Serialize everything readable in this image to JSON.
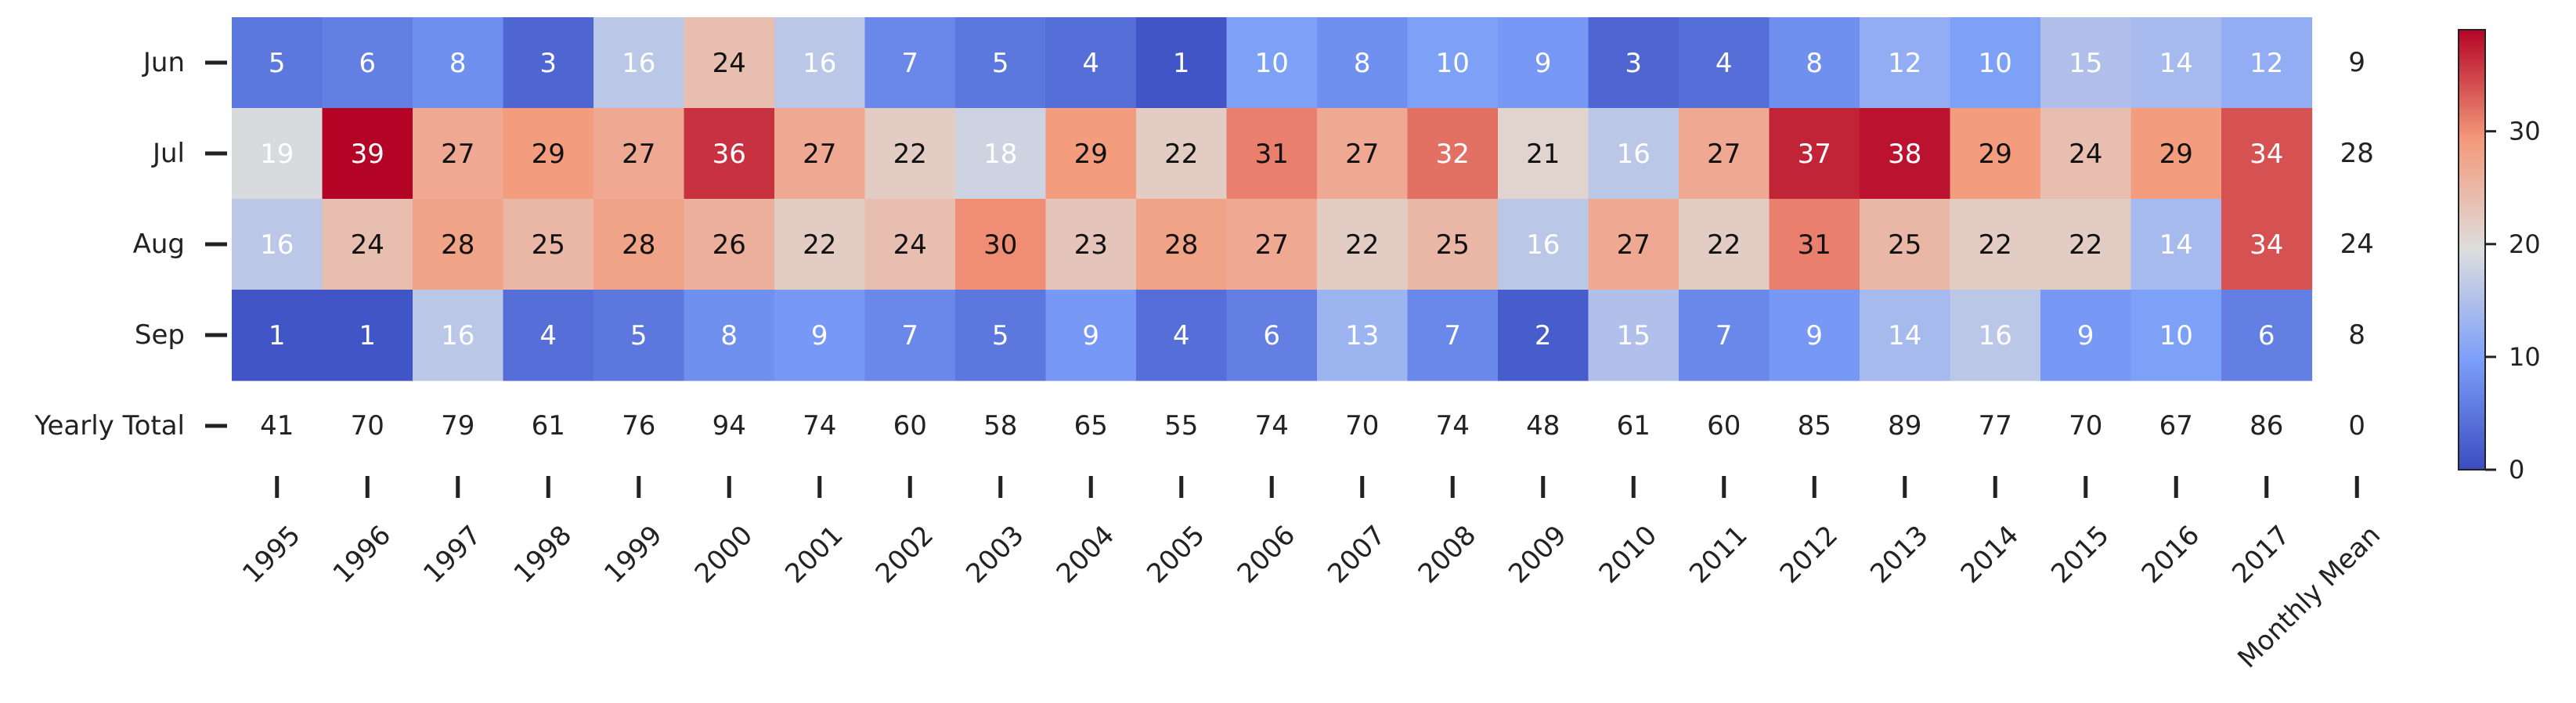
{
  "chart_data": {
    "type": "heatmap",
    "colormap": "coolwarm",
    "vmin": 0,
    "vmax": 39,
    "colorbar_ticks": [
      0,
      10,
      20,
      30
    ],
    "rows": [
      "Jun",
      "Jul",
      "Aug",
      "Sep"
    ],
    "columns": [
      "1995",
      "1996",
      "1997",
      "1998",
      "1999",
      "2000",
      "2001",
      "2002",
      "2003",
      "2004",
      "2005",
      "2006",
      "2007",
      "2008",
      "2009",
      "2010",
      "2011",
      "2012",
      "2013",
      "2014",
      "2015",
      "2016",
      "2017"
    ],
    "values": [
      [
        5,
        6,
        8,
        3,
        16,
        24,
        16,
        7,
        5,
        4,
        1,
        10,
        8,
        10,
        9,
        3,
        4,
        8,
        12,
        10,
        15,
        14,
        12
      ],
      [
        19,
        39,
        27,
        29,
        27,
        36,
        27,
        22,
        18,
        29,
        22,
        31,
        27,
        32,
        21,
        16,
        27,
        37,
        38,
        29,
        24,
        29,
        34
      ],
      [
        16,
        24,
        28,
        25,
        28,
        26,
        22,
        24,
        30,
        23,
        28,
        27,
        22,
        25,
        16,
        27,
        22,
        31,
        25,
        22,
        22,
        14,
        34
      ],
      [
        1,
        1,
        16,
        4,
        5,
        8,
        9,
        7,
        5,
        9,
        4,
        6,
        13,
        7,
        2,
        15,
        7,
        9,
        14,
        16,
        9,
        10,
        6
      ]
    ],
    "total_row_label": "Yearly Total",
    "yearly_totals": [
      41,
      70,
      79,
      61,
      76,
      94,
      74,
      60,
      58,
      65,
      55,
      74,
      70,
      74,
      48,
      61,
      60,
      85,
      89,
      77,
      70,
      67,
      86
    ],
    "mean_column_label": "Monthly Mean",
    "monthly_means": [
      9,
      28,
      24,
      8
    ],
    "mean_total": 0
  }
}
